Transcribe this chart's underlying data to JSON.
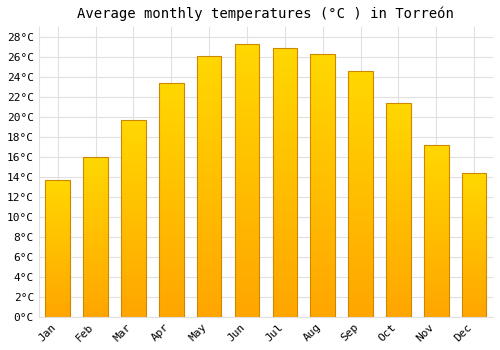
{
  "title": "Average monthly temperatures (°C ) in Torreón",
  "months": [
    "Jan",
    "Feb",
    "Mar",
    "Apr",
    "May",
    "Jun",
    "Jul",
    "Aug",
    "Sep",
    "Oct",
    "Nov",
    "Dec"
  ],
  "values": [
    13.7,
    16.0,
    19.7,
    23.4,
    26.1,
    27.3,
    26.9,
    26.3,
    24.6,
    21.4,
    17.2,
    14.4
  ],
  "bar_color_bottom": "#FFA500",
  "bar_color_top": "#FFD700",
  "bar_edge_color": "#CC8800",
  "background_color": "#FFFFFF",
  "grid_color": "#E0E0E0",
  "ylim": [
    0,
    29
  ],
  "yticks": [
    0,
    2,
    4,
    6,
    8,
    10,
    12,
    14,
    16,
    18,
    20,
    22,
    24,
    26,
    28
  ],
  "title_fontsize": 10,
  "tick_fontsize": 8,
  "font_family": "monospace"
}
